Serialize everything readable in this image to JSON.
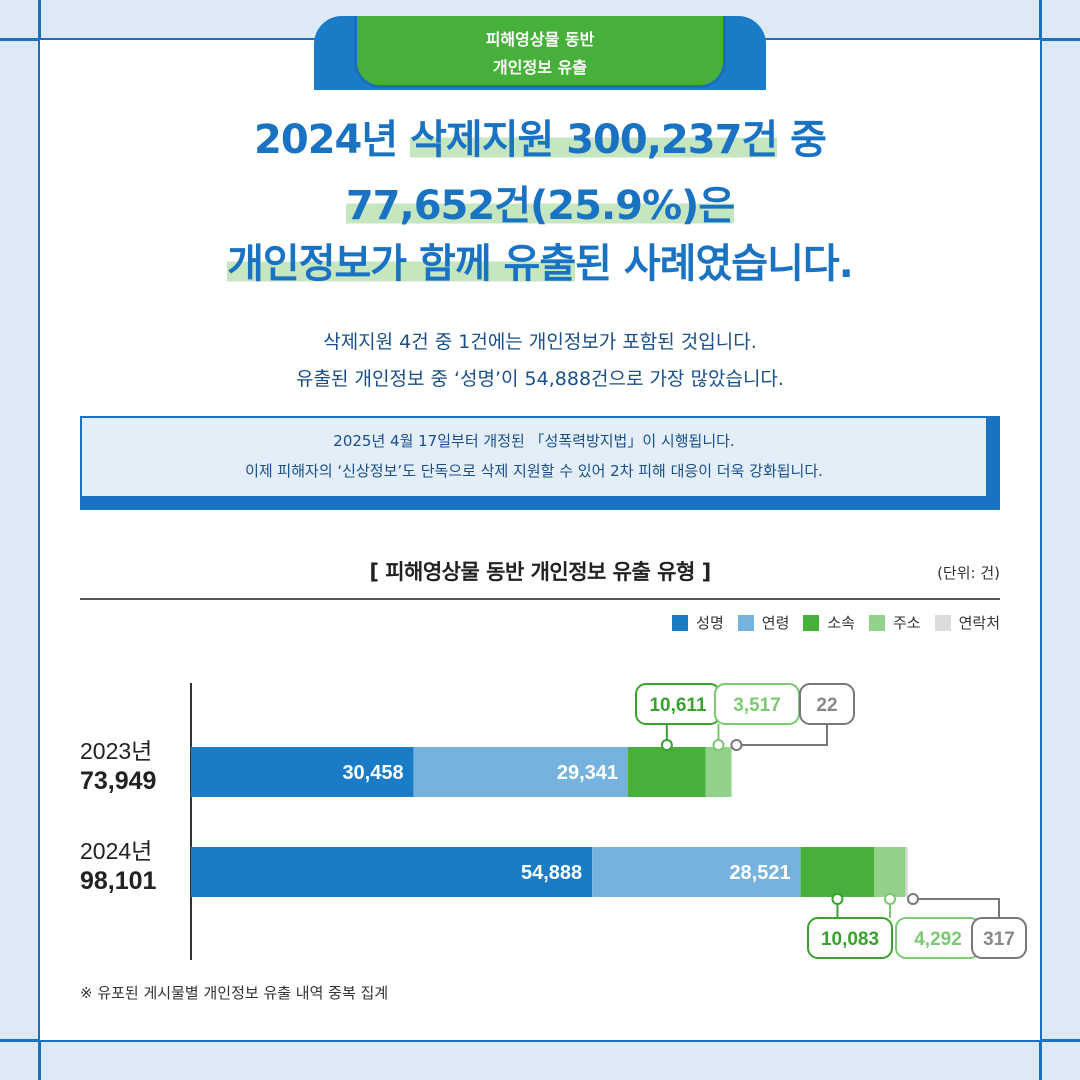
{
  "tab": {
    "line1": "피해영상물 동반",
    "line2": "개인정보 유출"
  },
  "headline": {
    "l1a": "2024년 ",
    "l1b": "삭제지원 300,237건",
    "l1c": " 중",
    "l2": "77,652건(25.9%)은",
    "l3a": "개인정보가 함께 유출",
    "l3b": "된 사례였습니다."
  },
  "subtext": {
    "line1": "삭제지원 4건 중 1건에는 개인정보가 포함된 것입니다.",
    "line2": "유출된 개인정보 중 ‘성명’이 54,888건으로 가장 많았습니다."
  },
  "notice": {
    "line1": "2025년 4월 17일부터 개정된 「성폭력방지법」이 시행됩니다.",
    "line2": "이제 피해자의 ‘신상정보’도 단독으로 삭제 지원할 수 있어 2차 피해 대응이 더욱 강화됩니다."
  },
  "colors": {
    "성명": "#1a7cc7",
    "연령": "#76b2de",
    "소속": "#46b03a",
    "주소": "#92d18a",
    "연락처": "#dcdcdc"
  },
  "chart_data": {
    "type": "bar",
    "orientation": "horizontal",
    "stacked": true,
    "title": "[ 피해영상물 동반 개인정보 유출 유형 ]",
    "unit": "(단위: 건)",
    "legend_position": "top-right",
    "categories": [
      "2023년",
      "2024년"
    ],
    "totals": [
      "73,949",
      "98,101"
    ],
    "series": [
      {
        "name": "성명",
        "values": [
          30458,
          54888
        ],
        "labels": [
          "30,458",
          "54,888"
        ]
      },
      {
        "name": "연령",
        "values": [
          29341,
          28521
        ],
        "labels": [
          "29,341",
          "28,521"
        ]
      },
      {
        "name": "소속",
        "values": [
          10611,
          10083
        ],
        "labels": [
          "10,611",
          "10,083"
        ]
      },
      {
        "name": "주소",
        "values": [
          3517,
          4292
        ],
        "labels": [
          "3,517",
          "4,292"
        ]
      },
      {
        "name": "연락처",
        "values": [
          22,
          317
        ],
        "labels": [
          "22",
          "317"
        ]
      }
    ]
  },
  "footnote": "※ 유포된 게시물별 개인정보 유출 내역 중복 집계"
}
